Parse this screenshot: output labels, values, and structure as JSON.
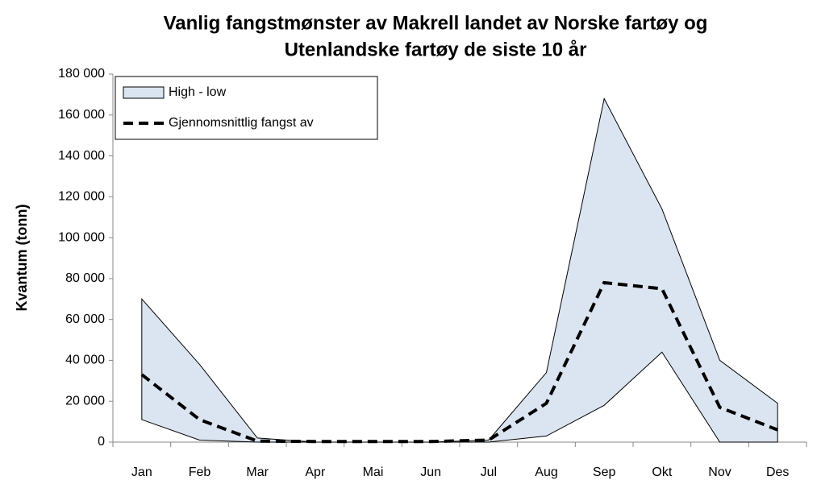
{
  "chart_data": {
    "type": "line",
    "title": [
      "Vanlig fangstmønster av Makrell landet av Norske fartøy og",
      "Utenlandske fartøy de siste 10 år"
    ],
    "y_label": "Kvantum (tonn)",
    "categories": [
      "Jan",
      "Feb",
      "Mar",
      "Apr",
      "Mai",
      "Jun",
      "Jul",
      "Aug",
      "Sep",
      "Okt",
      "Nov",
      "Des"
    ],
    "series": [
      {
        "name": "High - low",
        "color": "#dbe5f1",
        "values": [
          70000,
          38000,
          2000,
          0,
          0,
          0,
          1000,
          34000,
          168000,
          114000,
          40000,
          19000
        ],
        "low": [
          11000,
          1000,
          0,
          0,
          0,
          0,
          0,
          3000,
          18000,
          44000,
          0,
          0
        ]
      },
      {
        "name": "Gjennomsnittlig fangst av",
        "color": "#000000",
        "dashed": true,
        "values": [
          33000,
          11000,
          500,
          300,
          300,
          300,
          1000,
          19000,
          78000,
          75000,
          17000,
          6000
        ]
      }
    ],
    "ylim": [
      0,
      180000
    ],
    "yticks": [
      0,
      {
        "value": 20000,
        "label": "20 000"
      },
      {
        "value": 40000,
        "label": "40 000"
      },
      {
        "value": 60000,
        "label": "60 000"
      },
      {
        "value": 80000,
        "label": "80 000"
      },
      {
        "value": 100000,
        "label": "100 000"
      },
      {
        "value": 120000,
        "label": "120 000"
      },
      {
        "value": 140000,
        "label": "140 000"
      },
      {
        "value": 160000,
        "label": "160 000"
      },
      {
        "value": 180000,
        "label": "180 000"
      }
    ],
    "legend": "top-left"
  }
}
